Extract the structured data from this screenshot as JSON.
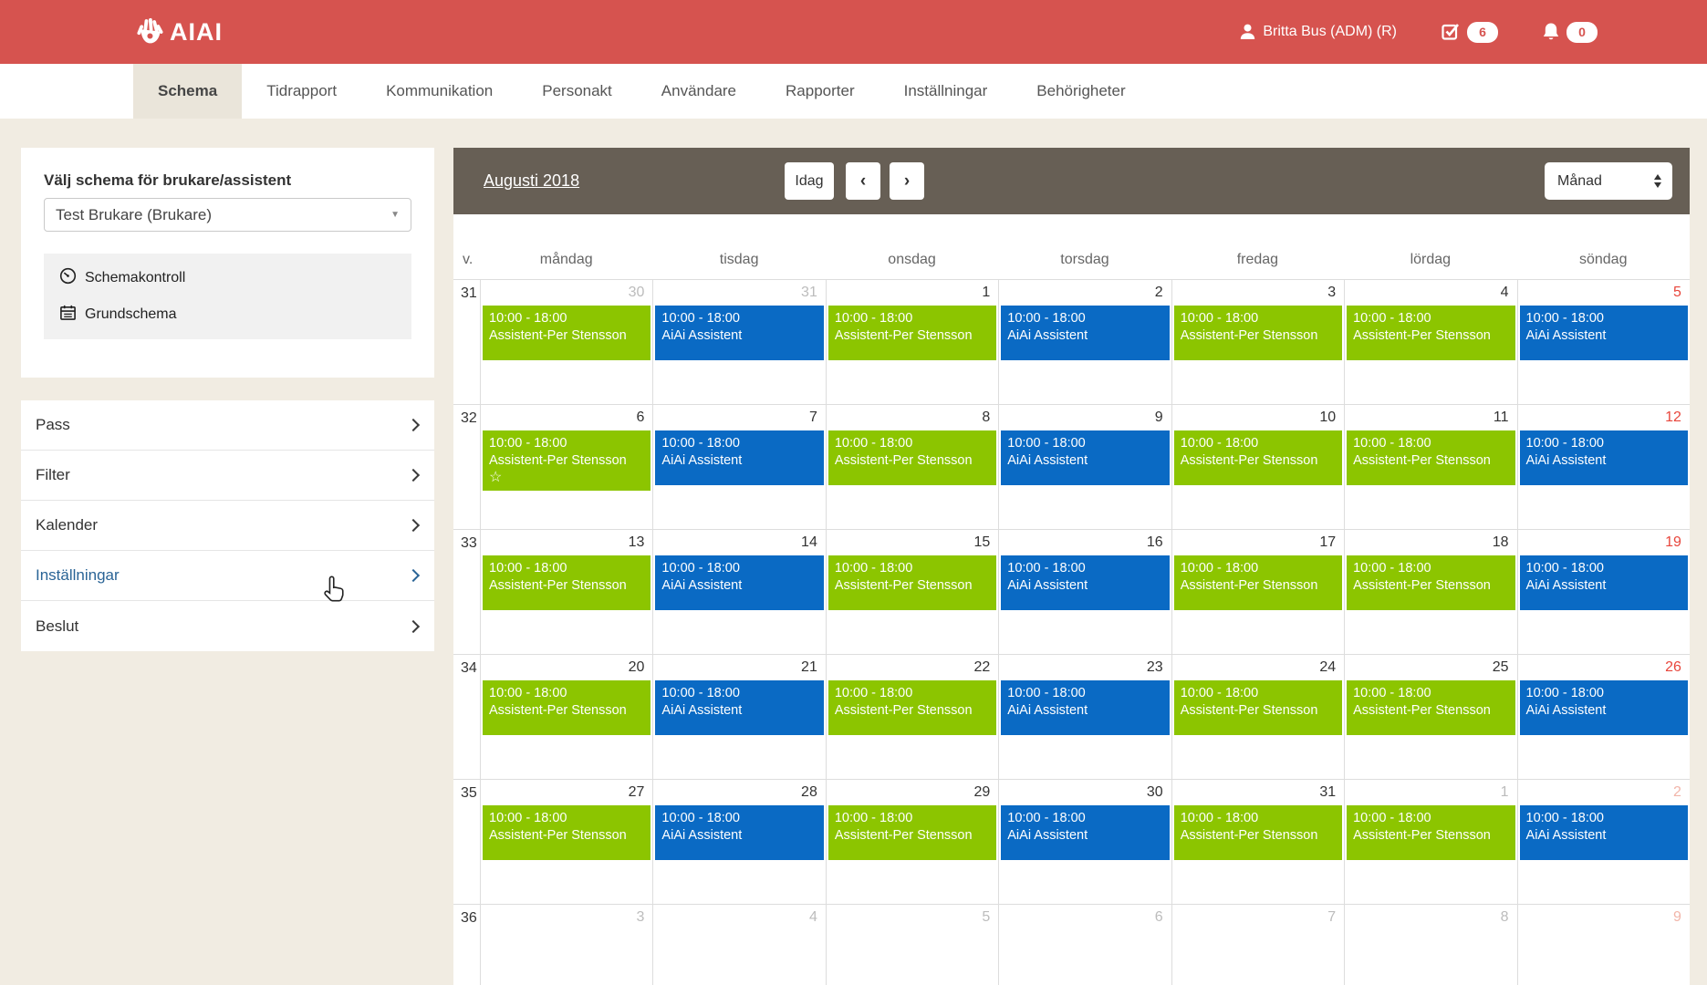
{
  "app": {
    "logo_text": "AIAI",
    "user": "Britta Bus (ADM)  (R)",
    "todo_count": "6",
    "alert_count": "0",
    "header_color": "#d6534f"
  },
  "nav": {
    "tabs": [
      {
        "label": "Schema",
        "active": true
      },
      {
        "label": "Tidrapport",
        "active": false
      },
      {
        "label": "Kommunikation",
        "active": false
      },
      {
        "label": "Personakt",
        "active": false
      },
      {
        "label": "Användare",
        "active": false
      },
      {
        "label": "Rapporter",
        "active": false
      },
      {
        "label": "Inställningar",
        "active": false
      },
      {
        "label": "Behörigheter",
        "active": false
      }
    ]
  },
  "sidebar": {
    "select_label": "Välj schema för brukare/assistent",
    "select_value": "Test Brukare (Brukare)",
    "links": [
      {
        "icon": "gauge-icon",
        "label": "Schemakontroll"
      },
      {
        "icon": "calendar-icon",
        "label": "Grundschema"
      }
    ],
    "accordion": [
      {
        "label": "Pass",
        "highlighted": false
      },
      {
        "label": "Filter",
        "highlighted": false
      },
      {
        "label": "Kalender",
        "highlighted": false
      },
      {
        "label": "Inställningar",
        "highlighted": true
      },
      {
        "label": "Beslut",
        "highlighted": false
      }
    ]
  },
  "calendar": {
    "title": "Augusti 2018",
    "today_label": "Idag",
    "prev_label": "‹",
    "next_label": "›",
    "view_select": "Månad",
    "week_col_header": "v.",
    "day_headers": [
      "måndag",
      "tisdag",
      "onsdag",
      "torsdag",
      "fredag",
      "lördag",
      "söndag"
    ],
    "event_colors": {
      "green": "#8cc500",
      "blue": "#0a6ac4"
    },
    "star_glyph": "☆",
    "weeks": [
      {
        "week": "31",
        "days": [
          {
            "date": "30",
            "muted": true,
            "event": {
              "time": "10:00 - 18:00",
              "title": "Assistent-Per Stensson",
              "color": "green"
            }
          },
          {
            "date": "31",
            "muted": true,
            "event": {
              "time": "10:00 - 18:00",
              "title": "AiAi Assistent",
              "color": "blue"
            }
          },
          {
            "date": "1",
            "muted": false,
            "event": {
              "time": "10:00 - 18:00",
              "title": "Assistent-Per Stensson",
              "color": "green"
            }
          },
          {
            "date": "2",
            "muted": false,
            "event": {
              "time": "10:00 - 18:00",
              "title": "AiAi Assistent",
              "color": "blue"
            }
          },
          {
            "date": "3",
            "muted": false,
            "event": {
              "time": "10:00 - 18:00",
              "title": "Assistent-Per Stensson",
              "color": "green"
            }
          },
          {
            "date": "4",
            "muted": false,
            "event": {
              "time": "10:00 - 18:00",
              "title": "Assistent-Per Stensson",
              "color": "green"
            }
          },
          {
            "date": "5",
            "muted": false,
            "event": {
              "time": "10:00 - 18:00",
              "title": "AiAi Assistent",
              "color": "blue"
            }
          }
        ]
      },
      {
        "week": "32",
        "days": [
          {
            "date": "6",
            "muted": false,
            "event": {
              "time": "10:00 - 18:00",
              "title": "Assistent-Per Stensson",
              "color": "green",
              "star": true
            }
          },
          {
            "date": "7",
            "muted": false,
            "event": {
              "time": "10:00 - 18:00",
              "title": "AiAi Assistent",
              "color": "blue"
            }
          },
          {
            "date": "8",
            "muted": false,
            "event": {
              "time": "10:00 - 18:00",
              "title": "Assistent-Per Stensson",
              "color": "green"
            }
          },
          {
            "date": "9",
            "muted": false,
            "event": {
              "time": "10:00 - 18:00",
              "title": "AiAi Assistent",
              "color": "blue"
            }
          },
          {
            "date": "10",
            "muted": false,
            "event": {
              "time": "10:00 - 18:00",
              "title": "Assistent-Per Stensson",
              "color": "green"
            }
          },
          {
            "date": "11",
            "muted": false,
            "event": {
              "time": "10:00 - 18:00",
              "title": "Assistent-Per Stensson",
              "color": "green"
            }
          },
          {
            "date": "12",
            "muted": false,
            "event": {
              "time": "10:00 - 18:00",
              "title": "AiAi Assistent",
              "color": "blue"
            }
          }
        ]
      },
      {
        "week": "33",
        "days": [
          {
            "date": "13",
            "muted": false,
            "event": {
              "time": "10:00 - 18:00",
              "title": "Assistent-Per Stensson",
              "color": "green"
            }
          },
          {
            "date": "14",
            "muted": false,
            "event": {
              "time": "10:00 - 18:00",
              "title": "AiAi Assistent",
              "color": "blue"
            }
          },
          {
            "date": "15",
            "muted": false,
            "event": {
              "time": "10:00 - 18:00",
              "title": "Assistent-Per Stensson",
              "color": "green"
            }
          },
          {
            "date": "16",
            "muted": false,
            "event": {
              "time": "10:00 - 18:00",
              "title": "AiAi Assistent",
              "color": "blue"
            }
          },
          {
            "date": "17",
            "muted": false,
            "event": {
              "time": "10:00 - 18:00",
              "title": "Assistent-Per Stensson",
              "color": "green"
            }
          },
          {
            "date": "18",
            "muted": false,
            "event": {
              "time": "10:00 - 18:00",
              "title": "Assistent-Per Stensson",
              "color": "green"
            }
          },
          {
            "date": "19",
            "muted": false,
            "event": {
              "time": "10:00 - 18:00",
              "title": "AiAi Assistent",
              "color": "blue"
            }
          }
        ]
      },
      {
        "week": "34",
        "days": [
          {
            "date": "20",
            "muted": false,
            "event": {
              "time": "10:00 - 18:00",
              "title": "Assistent-Per Stensson",
              "color": "green"
            }
          },
          {
            "date": "21",
            "muted": false,
            "event": {
              "time": "10:00 - 18:00",
              "title": "AiAi Assistent",
              "color": "blue"
            }
          },
          {
            "date": "22",
            "muted": false,
            "event": {
              "time": "10:00 - 18:00",
              "title": "Assistent-Per Stensson",
              "color": "green"
            }
          },
          {
            "date": "23",
            "muted": false,
            "event": {
              "time": "10:00 - 18:00",
              "title": "AiAi Assistent",
              "color": "blue"
            }
          },
          {
            "date": "24",
            "muted": false,
            "event": {
              "time": "10:00 - 18:00",
              "title": "Assistent-Per Stensson",
              "color": "green"
            }
          },
          {
            "date": "25",
            "muted": false,
            "event": {
              "time": "10:00 - 18:00",
              "title": "Assistent-Per Stensson",
              "color": "green"
            }
          },
          {
            "date": "26",
            "muted": false,
            "event": {
              "time": "10:00 - 18:00",
              "title": "AiAi Assistent",
              "color": "blue"
            }
          }
        ]
      },
      {
        "week": "35",
        "days": [
          {
            "date": "27",
            "muted": false,
            "event": {
              "time": "10:00 - 18:00",
              "title": "Assistent-Per Stensson",
              "color": "green"
            }
          },
          {
            "date": "28",
            "muted": false,
            "event": {
              "time": "10:00 - 18:00",
              "title": "AiAi Assistent",
              "color": "blue"
            }
          },
          {
            "date": "29",
            "muted": false,
            "event": {
              "time": "10:00 - 18:00",
              "title": "Assistent-Per Stensson",
              "color": "green"
            }
          },
          {
            "date": "30",
            "muted": false,
            "event": {
              "time": "10:00 - 18:00",
              "title": "AiAi Assistent",
              "color": "blue"
            }
          },
          {
            "date": "31",
            "muted": false,
            "event": {
              "time": "10:00 - 18:00",
              "title": "Assistent-Per Stensson",
              "color": "green"
            }
          },
          {
            "date": "1",
            "muted": true,
            "event": {
              "time": "10:00 - 18:00",
              "title": "Assistent-Per Stensson",
              "color": "green"
            }
          },
          {
            "date": "2",
            "muted": true,
            "event": {
              "time": "10:00 - 18:00",
              "title": "AiAi Assistent",
              "color": "blue"
            }
          }
        ]
      },
      {
        "week": "36",
        "days": [
          {
            "date": "3",
            "muted": true
          },
          {
            "date": "4",
            "muted": true
          },
          {
            "date": "5",
            "muted": true
          },
          {
            "date": "6",
            "muted": true
          },
          {
            "date": "7",
            "muted": true
          },
          {
            "date": "8",
            "muted": true
          },
          {
            "date": "9",
            "muted": true
          }
        ]
      }
    ]
  }
}
